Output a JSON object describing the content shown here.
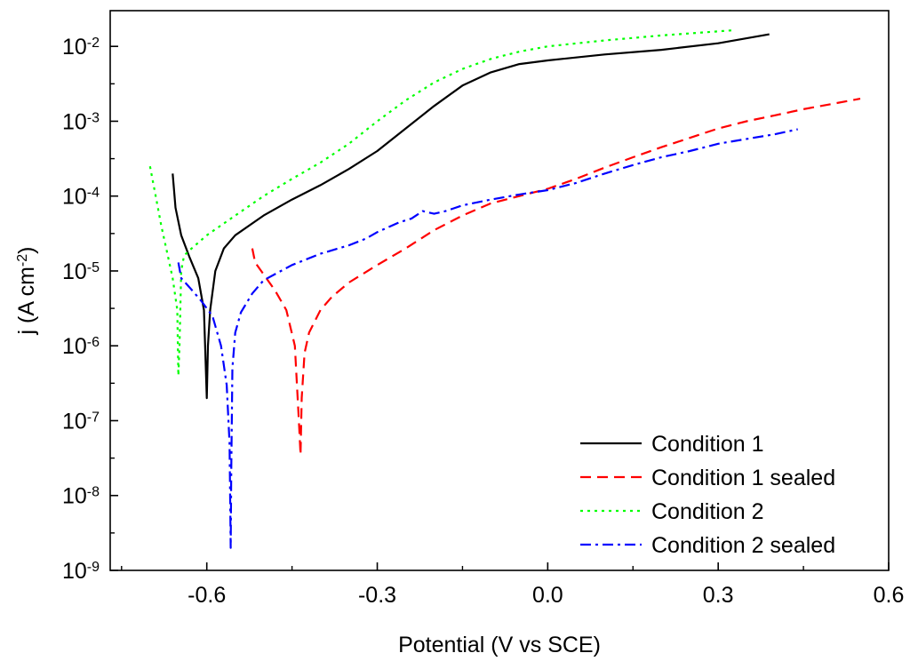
{
  "chart_data": {
    "type": "line",
    "title": "",
    "xlabel": "Potential (V vs SCE)",
    "ylabel_main": "j (A cm",
    "ylabel_sup": "-2",
    "ylabel_close": ")",
    "yscale": "log",
    "xlim": [
      -0.77,
      0.6
    ],
    "ylim": [
      1e-09,
      0.03
    ],
    "x_ticks": [
      {
        "value": -0.6,
        "label": "-0.6"
      },
      {
        "value": -0.3,
        "label": "-0.3"
      },
      {
        "value": 0.0,
        "label": "0.0"
      },
      {
        "value": 0.3,
        "label": "0.3"
      },
      {
        "value": 0.6,
        "label": "0.6"
      }
    ],
    "y_ticks": [
      {
        "exp": -2,
        "base": "10",
        "sup": "-2"
      },
      {
        "exp": -3,
        "base": "10",
        "sup": "-3"
      },
      {
        "exp": -4,
        "base": "10",
        "sup": "-4"
      },
      {
        "exp": -5,
        "base": "10",
        "sup": "-5"
      },
      {
        "exp": -6,
        "base": "10",
        "sup": "-6"
      },
      {
        "exp": -7,
        "base": "10",
        "sup": "-7"
      },
      {
        "exp": -8,
        "base": "10",
        "sup": "-8"
      },
      {
        "exp": -9,
        "base": "10",
        "sup": "-9"
      }
    ],
    "legend_position": "bottom-right",
    "series": [
      {
        "name": "Condition 1",
        "color": "#000000",
        "dash": "solid",
        "points": [
          [
            -0.66,
            0.0002
          ],
          [
            -0.655,
            7e-05
          ],
          [
            -0.645,
            3e-05
          ],
          [
            -0.63,
            1.5e-05
          ],
          [
            -0.615,
            8e-06
          ],
          [
            -0.605,
            3e-06
          ],
          [
            -0.6,
            2e-07
          ],
          [
            -0.598,
            1e-06
          ],
          [
            -0.594,
            3e-06
          ],
          [
            -0.585,
            1e-05
          ],
          [
            -0.57,
            2e-05
          ],
          [
            -0.55,
            3e-05
          ],
          [
            -0.5,
            5.5e-05
          ],
          [
            -0.45,
            9e-05
          ],
          [
            -0.4,
            0.00014
          ],
          [
            -0.35,
            0.00023
          ],
          [
            -0.3,
            0.0004
          ],
          [
            -0.25,
            0.0008
          ],
          [
            -0.2,
            0.0016
          ],
          [
            -0.15,
            0.003
          ],
          [
            -0.1,
            0.0045
          ],
          [
            -0.05,
            0.0058
          ],
          [
            0.0,
            0.0065
          ],
          [
            0.1,
            0.0078
          ],
          [
            0.2,
            0.009
          ],
          [
            0.3,
            0.011
          ],
          [
            0.39,
            0.0145
          ]
        ]
      },
      {
        "name": "Condition 1 sealed",
        "color": "#ff0000",
        "dash": "dashed",
        "points": [
          [
            -0.52,
            2e-05
          ],
          [
            -0.515,
            1.3e-05
          ],
          [
            -0.5,
            9e-06
          ],
          [
            -0.48,
            5.5e-06
          ],
          [
            -0.46,
            3e-06
          ],
          [
            -0.445,
            1e-06
          ],
          [
            -0.438,
            1e-07
          ],
          [
            -0.435,
            3.5e-08
          ],
          [
            -0.433,
            2e-07
          ],
          [
            -0.428,
            8e-07
          ],
          [
            -0.42,
            1.5e-06
          ],
          [
            -0.4,
            3e-06
          ],
          [
            -0.38,
            4.5e-06
          ],
          [
            -0.35,
            7e-06
          ],
          [
            -0.3,
            1.2e-05
          ],
          [
            -0.25,
            2e-05
          ],
          [
            -0.2,
            3.5e-05
          ],
          [
            -0.15,
            5.5e-05
          ],
          [
            -0.1,
            8e-05
          ],
          [
            -0.05,
            0.0001
          ],
          [
            0.0,
            0.000125
          ],
          [
            0.05,
            0.00017
          ],
          [
            0.1,
            0.00024
          ],
          [
            0.15,
            0.00033
          ],
          [
            0.2,
            0.00045
          ],
          [
            0.25,
            0.0006
          ],
          [
            0.3,
            0.0008
          ],
          [
            0.35,
            0.001
          ],
          [
            0.4,
            0.0012
          ],
          [
            0.45,
            0.00145
          ],
          [
            0.5,
            0.0017
          ],
          [
            0.55,
            0.002
          ]
        ]
      },
      {
        "name": "Condition 2",
        "color": "#00ff00",
        "dash": "dotted",
        "points": [
          [
            -0.7,
            0.00025
          ],
          [
            -0.69,
            0.0001
          ],
          [
            -0.68,
            4e-05
          ],
          [
            -0.67,
            1.8e-05
          ],
          [
            -0.66,
            8e-06
          ],
          [
            -0.652,
            3e-06
          ],
          [
            -0.65,
            4e-07
          ],
          [
            -0.648,
            1e-06
          ],
          [
            -0.645,
            1e-05
          ],
          [
            -0.64,
            1.6e-05
          ],
          [
            -0.63,
            1.9e-05
          ],
          [
            -0.6,
            3e-05
          ],
          [
            -0.55,
            5.5e-05
          ],
          [
            -0.5,
            0.0001
          ],
          [
            -0.45,
            0.00017
          ],
          [
            -0.4,
            0.00028
          ],
          [
            -0.35,
            0.0005
          ],
          [
            -0.3,
            0.001
          ],
          [
            -0.25,
            0.0019
          ],
          [
            -0.2,
            0.0033
          ],
          [
            -0.15,
            0.005
          ],
          [
            -0.1,
            0.0068
          ],
          [
            -0.05,
            0.0085
          ],
          [
            0.0,
            0.01
          ],
          [
            0.1,
            0.012
          ],
          [
            0.2,
            0.014
          ],
          [
            0.33,
            0.0165
          ]
        ]
      },
      {
        "name": "Condition 2 sealed",
        "color": "#0000ff",
        "dash": "dashdot",
        "points": [
          [
            -0.65,
            1.3e-05
          ],
          [
            -0.645,
            8e-06
          ],
          [
            -0.63,
            6e-06
          ],
          [
            -0.61,
            4e-06
          ],
          [
            -0.59,
            2.5e-06
          ],
          [
            -0.575,
            1e-06
          ],
          [
            -0.565,
            3e-07
          ],
          [
            -0.56,
            5e-08
          ],
          [
            -0.558,
            2e-09
          ],
          [
            -0.557,
            2e-08
          ],
          [
            -0.555,
            5e-07
          ],
          [
            -0.55,
            1.5e-06
          ],
          [
            -0.54,
            2.8e-06
          ],
          [
            -0.52,
            5e-06
          ],
          [
            -0.5,
            7.5e-06
          ],
          [
            -0.45,
            1.2e-05
          ],
          [
            -0.4,
            1.7e-05
          ],
          [
            -0.35,
            2.2e-05
          ],
          [
            -0.32,
            2.7e-05
          ],
          [
            -0.3,
            3.3e-05
          ],
          [
            -0.26,
            4.5e-05
          ],
          [
            -0.24,
            5e-05
          ],
          [
            -0.22,
            6.3e-05
          ],
          [
            -0.2,
            5.8e-05
          ],
          [
            -0.18,
            6.3e-05
          ],
          [
            -0.15,
            7.5e-05
          ],
          [
            -0.1,
            9e-05
          ],
          [
            -0.05,
            0.000105
          ],
          [
            0.0,
            0.00012
          ],
          [
            0.05,
            0.00015
          ],
          [
            0.1,
            0.0002
          ],
          [
            0.15,
            0.00026
          ],
          [
            0.2,
            0.00033
          ],
          [
            0.25,
            0.0004
          ],
          [
            0.3,
            0.0005
          ],
          [
            0.35,
            0.00058
          ],
          [
            0.4,
            0.00067
          ],
          [
            0.44,
            0.00078
          ]
        ]
      }
    ]
  }
}
